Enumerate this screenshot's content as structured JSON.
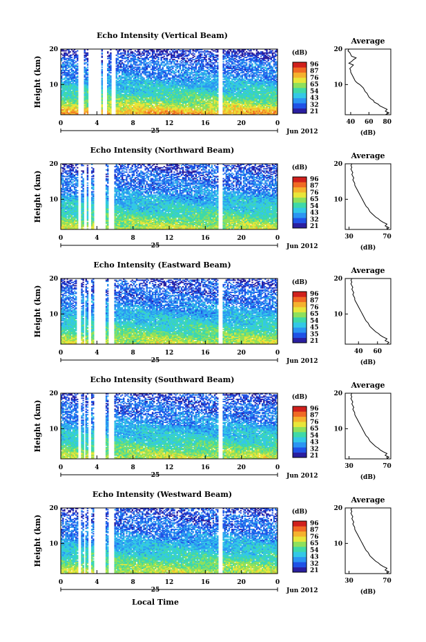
{
  "chart_data": [
    {
      "type": "heatmap",
      "title": "Echo Intensity (Vertical Beam)",
      "xlabel": "Local Time",
      "ylabel": "Height (km)",
      "x_ticks": [
        "0",
        "4",
        "8",
        "12",
        "16",
        "20",
        "0"
      ],
      "y_ticks": [
        "10",
        "20"
      ],
      "xlim": [
        0,
        24
      ],
      "ylim": [
        1.5,
        20
      ],
      "date_label": "25",
      "month_label": "Jun 2012",
      "colorbar": {
        "label": "(dB)",
        "ticks": [
          "96",
          "87",
          "76",
          "65",
          "54",
          "43",
          "32",
          "21"
        ],
        "vmin": 21,
        "vmax": 96
      },
      "gaps_hours": [
        [
          2.0,
          2.5
        ],
        [
          3.1,
          3.6
        ],
        [
          3.7,
          4.5
        ],
        [
          4.7,
          5.1
        ],
        [
          5.6,
          6.0
        ],
        [
          17.4,
          17.9
        ]
      ],
      "intensity_profile": {
        "heights_km": [
          2,
          4,
          6,
          8,
          10,
          12,
          14,
          16,
          18,
          20
        ],
        "mean_db": [
          78,
          66,
          58,
          51,
          46,
          40,
          37,
          36,
          30,
          26
        ]
      },
      "average_panel": {
        "title": "Average",
        "xlabel": "(dB)",
        "x_ticks": [
          "40",
          "60",
          "80"
        ],
        "xlim": [
          34,
          84
        ],
        "y_ticks": [
          "10",
          "20"
        ],
        "ylim": [
          1.5,
          20
        ],
        "profile": {
          "height_km": [
            1.5,
            2.0,
            2.5,
            3.0,
            3.5,
            4.0,
            4.5,
            5.0,
            5.5,
            6.0,
            6.5,
            7.0,
            7.5,
            8.0,
            8.5,
            9.0,
            9.5,
            10.0,
            10.5,
            11.0,
            11.5,
            12.0,
            12.5,
            13.0,
            13.5,
            14.0,
            14.5,
            15.0,
            15.5,
            16.0,
            16.5,
            17.0,
            17.5,
            18.0,
            18.5,
            19.0,
            19.5,
            20.0
          ],
          "db": [
            78,
            82,
            78,
            80,
            76,
            72,
            70,
            66,
            65,
            62,
            60,
            59,
            58,
            56,
            55,
            54,
            52,
            50,
            47,
            45,
            44,
            43,
            42,
            41,
            40,
            40,
            39,
            41,
            43,
            38,
            41,
            43,
            46,
            41,
            40,
            39,
            37,
            38
          ]
        }
      }
    },
    {
      "type": "heatmap",
      "title": "Echo Intensity (Northward Beam)",
      "xlabel": "Local Time",
      "ylabel": "Height (km)",
      "x_ticks": [
        "0",
        "4",
        "8",
        "12",
        "16",
        "20",
        "0"
      ],
      "y_ticks": [
        "10",
        "20"
      ],
      "xlim": [
        0,
        24
      ],
      "ylim": [
        1.5,
        20
      ],
      "date_label": "25",
      "month_label": "Jun 2012",
      "colorbar": {
        "label": "(dB)",
        "ticks": [
          "96",
          "87",
          "76",
          "65",
          "54",
          "43",
          "32",
          "21"
        ],
        "vmin": 21,
        "vmax": 96
      },
      "gaps_hours": [
        [
          2.0,
          2.3
        ],
        [
          2.6,
          2.8
        ],
        [
          3.1,
          3.3
        ],
        [
          3.6,
          5.0
        ],
        [
          5.3,
          5.9
        ],
        [
          17.4,
          17.9
        ]
      ],
      "intensity_profile": {
        "heights_km": [
          2,
          4,
          6,
          8,
          10,
          12,
          14,
          16,
          18,
          20
        ],
        "mean_db": [
          66,
          60,
          54,
          48,
          44,
          40,
          36,
          34,
          32,
          30
        ]
      },
      "average_panel": {
        "title": "Average",
        "xlabel": "(dB)",
        "x_ticks": [
          "30",
          "70"
        ],
        "xlim": [
          26,
          74
        ],
        "y_ticks": [
          "10",
          "20"
        ],
        "ylim": [
          1.5,
          20
        ],
        "profile": {
          "height_km": [
            1.5,
            2.0,
            2.5,
            3.0,
            3.5,
            4.0,
            4.5,
            5.0,
            5.5,
            6.0,
            6.5,
            7.0,
            7.5,
            8.0,
            8.5,
            9.0,
            9.5,
            10.0,
            10.5,
            11.0,
            11.5,
            12.0,
            12.5,
            13.0,
            13.5,
            14.0,
            14.5,
            15.0,
            15.5,
            16.0,
            16.5,
            17.0,
            17.5,
            18.0,
            18.5,
            19.0,
            19.5,
            20.0
          ],
          "db": [
            70,
            72,
            68,
            70,
            66,
            63,
            61,
            58,
            56,
            54,
            52,
            51,
            50,
            48,
            47,
            46,
            45,
            44,
            43,
            42,
            41,
            40,
            39,
            38,
            37,
            36,
            36,
            35,
            34,
            35,
            34,
            33,
            34,
            33,
            32,
            33,
            32,
            33
          ]
        }
      }
    },
    {
      "type": "heatmap",
      "title": "Echo Intensity (Eastward Beam)",
      "xlabel": "Local Time",
      "ylabel": "Height (km)",
      "x_ticks": [
        "0",
        "4",
        "8",
        "12",
        "16",
        "20",
        "0"
      ],
      "y_ticks": [
        "10",
        "20"
      ],
      "xlim": [
        0,
        24
      ],
      "ylim": [
        1.5,
        20
      ],
      "date_label": "25",
      "month_label": "Jun 2012",
      "colorbar": {
        "label": "(dB)",
        "ticks": [
          "96",
          "87",
          "76",
          "65",
          "54",
          "45",
          "35",
          "21"
        ],
        "vmin": 21,
        "vmax": 96
      },
      "gaps_hours": [
        [
          1.8,
          2.2
        ],
        [
          2.5,
          2.7
        ],
        [
          3.1,
          3.3
        ],
        [
          3.6,
          5.0
        ],
        [
          5.3,
          5.9
        ],
        [
          17.4,
          17.9
        ]
      ],
      "intensity_profile": {
        "heights_km": [
          2,
          4,
          6,
          8,
          10,
          12,
          14,
          16,
          18,
          20
        ],
        "mean_db": [
          66,
          60,
          54,
          48,
          44,
          40,
          36,
          34,
          32,
          30
        ]
      },
      "average_panel": {
        "title": "Average",
        "xlabel": "(dB)",
        "x_ticks": [
          "40",
          "60"
        ],
        "xlim": [
          26,
          74
        ],
        "y_ticks": [
          "10",
          "20"
        ],
        "ylim": [
          1.5,
          20
        ],
        "profile": {
          "height_km": [
            1.5,
            2.0,
            2.5,
            3.0,
            3.5,
            4.0,
            4.5,
            5.0,
            5.5,
            6.0,
            6.5,
            7.0,
            7.5,
            8.0,
            8.5,
            9.0,
            9.5,
            10.0,
            10.5,
            11.0,
            11.5,
            12.0,
            12.5,
            13.0,
            13.5,
            14.0,
            14.5,
            15.0,
            15.5,
            16.0,
            16.5,
            17.0,
            17.5,
            18.0,
            18.5,
            19.0,
            19.5,
            20.0
          ],
          "db": [
            70,
            72,
            68,
            70,
            66,
            63,
            61,
            58,
            56,
            54,
            52,
            51,
            50,
            48,
            47,
            46,
            45,
            44,
            43,
            42,
            41,
            40,
            39,
            38,
            37,
            36,
            36,
            35,
            34,
            35,
            34,
            33,
            34,
            33,
            32,
            33,
            32,
            33
          ]
        }
      }
    },
    {
      "type": "heatmap",
      "title": "Echo Intensity (Southward Beam)",
      "xlabel": "Local Time",
      "ylabel": "Height (km)",
      "x_ticks": [
        "0",
        "4",
        "8",
        "12",
        "16",
        "20",
        "0"
      ],
      "y_ticks": [
        "10",
        "20"
      ],
      "xlim": [
        0,
        24
      ],
      "ylim": [
        1.5,
        20
      ],
      "date_label": "25",
      "month_label": "Jun 2012",
      "colorbar": {
        "label": "(dB)",
        "ticks": [
          "96",
          "87",
          "76",
          "65",
          "54",
          "43",
          "32",
          "21"
        ],
        "vmin": 21,
        "vmax": 96
      },
      "gaps_hours": [
        [
          2.0,
          2.2
        ],
        [
          2.5,
          2.7
        ],
        [
          3.1,
          3.3
        ],
        [
          3.6,
          5.0
        ],
        [
          5.3,
          5.9
        ],
        [
          17.5,
          17.9
        ]
      ],
      "intensity_profile": {
        "heights_km": [
          2,
          4,
          6,
          8,
          10,
          12,
          14,
          16,
          18,
          20
        ],
        "mean_db": [
          66,
          60,
          54,
          48,
          44,
          40,
          36,
          34,
          32,
          30
        ]
      },
      "average_panel": {
        "title": "Average",
        "xlabel": "(dB)",
        "x_ticks": [
          "30",
          "70"
        ],
        "xlim": [
          26,
          74
        ],
        "y_ticks": [
          "10",
          "20"
        ],
        "ylim": [
          1.5,
          20
        ],
        "profile": {
          "height_km": [
            1.5,
            2.0,
            2.5,
            3.0,
            3.5,
            4.0,
            4.5,
            5.0,
            5.5,
            6.0,
            6.5,
            7.0,
            7.5,
            8.0,
            8.5,
            9.0,
            9.5,
            10.0,
            10.5,
            11.0,
            11.5,
            12.0,
            12.5,
            13.0,
            13.5,
            14.0,
            14.5,
            15.0,
            15.5,
            16.0,
            16.5,
            17.0,
            17.5,
            18.0,
            18.5,
            19.0,
            19.5,
            20.0
          ],
          "db": [
            70,
            72,
            68,
            70,
            66,
            63,
            61,
            58,
            56,
            54,
            52,
            51,
            50,
            48,
            47,
            46,
            45,
            44,
            43,
            42,
            41,
            40,
            39,
            38,
            37,
            36,
            36,
            35,
            34,
            35,
            34,
            33,
            34,
            33,
            32,
            33,
            32,
            33
          ]
        }
      }
    },
    {
      "type": "heatmap",
      "title": "Echo Intensity (Westward Beam)",
      "xlabel": "Local Time",
      "ylabel": "Height (km)",
      "x_ticks": [
        "0",
        "4",
        "8",
        "12",
        "16",
        "20",
        "0"
      ],
      "y_ticks": [
        "10",
        "20"
      ],
      "xlim": [
        0,
        24
      ],
      "ylim": [
        1.5,
        20
      ],
      "date_label": "25",
      "month_label": "Jun 2012",
      "colorbar": {
        "label": "(dB)",
        "ticks": [
          "96",
          "87",
          "76",
          "65",
          "54",
          "43",
          "32",
          "21"
        ],
        "vmin": 21,
        "vmax": 96
      },
      "gaps_hours": [
        [
          1.9,
          2.2
        ],
        [
          2.5,
          2.7
        ],
        [
          3.1,
          3.3
        ],
        [
          3.6,
          5.0
        ],
        [
          5.3,
          5.9
        ],
        [
          17.4,
          17.9
        ]
      ],
      "intensity_profile": {
        "heights_km": [
          2,
          4,
          6,
          8,
          10,
          12,
          14,
          16,
          18,
          20
        ],
        "mean_db": [
          66,
          60,
          54,
          48,
          44,
          40,
          36,
          34,
          32,
          30
        ]
      },
      "average_panel": {
        "title": "Average",
        "xlabel": "(dB)",
        "x_ticks": [
          "30",
          "70"
        ],
        "xlim": [
          26,
          74
        ],
        "y_ticks": [
          "10",
          "20"
        ],
        "ylim": [
          1.5,
          20
        ],
        "profile": {
          "height_km": [
            1.5,
            2.0,
            2.5,
            3.0,
            3.5,
            4.0,
            4.5,
            5.0,
            5.5,
            6.0,
            6.5,
            7.0,
            7.5,
            8.0,
            8.5,
            9.0,
            9.5,
            10.0,
            10.5,
            11.0,
            11.5,
            12.0,
            12.5,
            13.0,
            13.5,
            14.0,
            14.5,
            15.0,
            15.5,
            16.0,
            16.5,
            17.0,
            17.5,
            18.0,
            18.5,
            19.0,
            19.5,
            20.0
          ],
          "db": [
            70,
            72,
            68,
            70,
            66,
            63,
            61,
            58,
            56,
            54,
            52,
            51,
            50,
            48,
            47,
            46,
            45,
            44,
            43,
            42,
            41,
            40,
            39,
            38,
            37,
            36,
            36,
            35,
            34,
            35,
            34,
            33,
            34,
            33,
            32,
            33,
            32,
            33
          ]
        }
      }
    }
  ],
  "colormap": [
    "#2a1fa0",
    "#1f52e6",
    "#2b95f2",
    "#33c8e6",
    "#3fd9a8",
    "#8ee05c",
    "#e8e63a",
    "#f5b22e",
    "#f06a24",
    "#d0201c"
  ]
}
